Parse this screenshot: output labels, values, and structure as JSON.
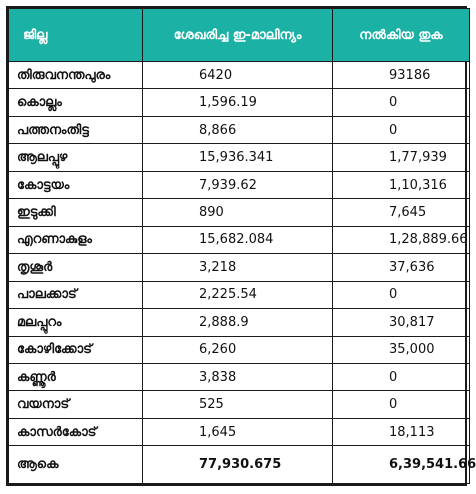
{
  "headers": {
    "district": "ജില്ല",
    "collected": "ശേഖരിച്ച ഇ-മാലിന്യം",
    "paid": "നൽകിയ തുക"
  },
  "rows": [
    {
      "district": "തിരുവനന്തപുരം",
      "collected": "6420",
      "paid": "93186"
    },
    {
      "district": "കൊല്ലം",
      "collected": "1,596.19",
      "paid": "0"
    },
    {
      "district": "പത്തനംതിട്ട",
      "collected": "8,866",
      "paid": "0"
    },
    {
      "district": "ആലപ്പുഴ",
      "collected": "15,936.341",
      "paid": "1,77,939"
    },
    {
      "district": "കോട്ടയം",
      "collected": "7,939.62",
      "paid": "1,10,316"
    },
    {
      "district": "ഇടുക്കി",
      "collected": "890",
      "paid": "7,645"
    },
    {
      "district": "എറണാകുളം",
      "collected": "15,682.084",
      "paid": "1,28,889.66"
    },
    {
      "district": "തൃശൂർ",
      "collected": "3,218",
      "paid": "37,636"
    },
    {
      "district": "പാലക്കാട്",
      "collected": "2,225.54",
      "paid": "0"
    },
    {
      "district": "മലപ്പുറം",
      "collected": "2,888.9",
      "paid": "30,817"
    },
    {
      "district": "കോഴിക്കോട്",
      "collected": "6,260",
      "paid": "35,000"
    },
    {
      "district": "കണ്ണൂർ",
      "collected": "3,838",
      "paid": "0"
    },
    {
      "district": "വയനാട്",
      "collected": "525",
      "paid": "0"
    },
    {
      "district": "കാസർകോട്",
      "collected": "1,645",
      "paid": "18,113"
    }
  ],
  "total": {
    "label": "ആകെ",
    "collected": "77,930.675",
    "paid": "6,39,541.66"
  },
  "colors": {
    "header_bg": "#1bb1a5",
    "header_text": "#ffffff",
    "border": "#1a1a1a"
  }
}
